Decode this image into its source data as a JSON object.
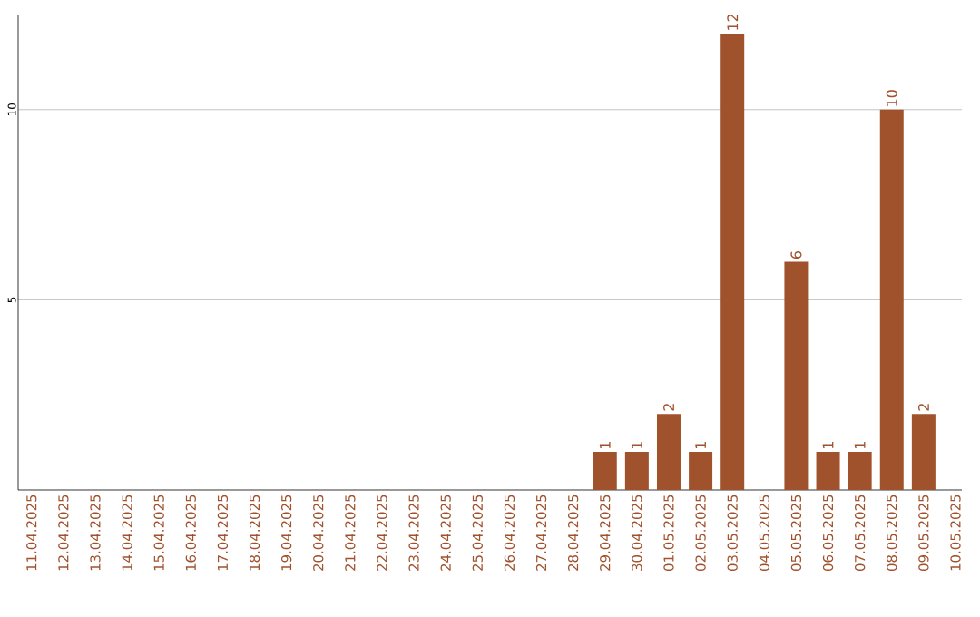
{
  "chart_data": {
    "type": "bar",
    "categories": [
      "11.04.2025",
      "12.04.2025",
      "13.04.2025",
      "14.04.2025",
      "15.04.2025",
      "16.04.2025",
      "17.04.2025",
      "18.04.2025",
      "19.04.2025",
      "20.04.2025",
      "21.04.2025",
      "22.04.2025",
      "23.04.2025",
      "24.04.2025",
      "25.04.2025",
      "26.04.2025",
      "27.04.2025",
      "28.04.2025",
      "29.04.2025",
      "30.04.2025",
      "01.05.2025",
      "02.05.2025",
      "03.05.2025",
      "04.05.2025",
      "05.05.2025",
      "06.05.2025",
      "07.05.2025",
      "08.05.2025",
      "09.05.2025",
      "10.05.2025"
    ],
    "values": [
      0,
      0,
      0,
      0,
      0,
      0,
      0,
      0,
      0,
      0,
      0,
      0,
      0,
      0,
      0,
      0,
      0,
      0,
      1,
      1,
      2,
      1,
      12,
      0,
      6,
      1,
      1,
      10,
      2,
      0
    ],
    "value_labels": [
      null,
      null,
      null,
      null,
      null,
      null,
      null,
      null,
      null,
      null,
      null,
      null,
      null,
      null,
      null,
      null,
      null,
      null,
      "1",
      "1",
      "2",
      "1",
      "12",
      null,
      "6",
      "1",
      "1",
      "10",
      "2",
      null
    ],
    "color": "#a0522d",
    "ylim": [
      0,
      12.5
    ],
    "yticks": [
      5,
      10
    ],
    "grid": "y"
  }
}
